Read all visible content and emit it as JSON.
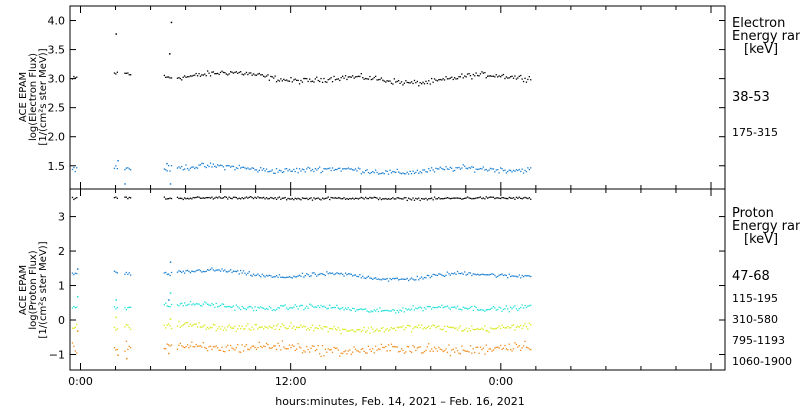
{
  "xlabel": "hours:minutes, Feb. 14, 2021 – Feb. 16, 2021",
  "x_ticks": [
    {
      "hour": 0,
      "label": "0:00"
    },
    {
      "hour": 12,
      "label": "12:00"
    },
    {
      "hour": 24,
      "label": "0:00"
    }
  ],
  "chart_data": [
    {
      "type": "scatter",
      "instrument": "ACE EPAM",
      "ylabel_lines": [
        "ACE EPAM",
        "log(Electron Flux)",
        "[1/(cm²s ster MeV)]"
      ],
      "xlim_hours": [
        -0.6,
        36.8
      ],
      "ylim": [
        1.1,
        4.25
      ],
      "y_ticks": [
        1.5,
        2.0,
        2.5,
        3.0,
        3.5,
        4.0
      ],
      "y_tick_labels": [
        "1.5",
        "2.0",
        "2.5",
        "3.0",
        "3.5",
        "4.0"
      ],
      "legend": {
        "title_lines": [
          "Electron",
          "Energy ran",
          "[keV]"
        ]
      },
      "series": [
        {
          "name": "38-53",
          "color": "#000000",
          "base": 3.03,
          "amp": 0.05,
          "noise": 0.04,
          "spikes": [
            [
              2.0,
              3.78
            ],
            [
              5.15,
              3.98
            ],
            [
              5.05,
              3.44
            ]
          ]
        },
        {
          "name": "175-315",
          "color": "#1a7fd1",
          "base": 1.45,
          "amp": 0.03,
          "noise": 0.04,
          "spikes": [
            [
              2.1,
              1.6
            ],
            [
              2.5,
              1.2
            ],
            [
              4.9,
              1.55
            ],
            [
              5.1,
              1.2
            ]
          ]
        }
      ]
    },
    {
      "type": "scatter",
      "instrument": "ACE EPAM",
      "ylabel_lines": [
        "ACE EPAM",
        "log(Proton Flux)",
        "[1/(cm²s ster MeV)]"
      ],
      "xlim_hours": [
        -0.6,
        36.8
      ],
      "ylim": [
        -1.45,
        3.8
      ],
      "y_ticks": [
        -1,
        0,
        1,
        2,
        3
      ],
      "y_tick_labels": [
        "−1",
        "0",
        "1",
        "2",
        "3"
      ],
      "legend": {
        "title_lines": [
          "Proton",
          "Energy ran",
          "[keV]"
        ]
      },
      "series": [
        {
          "name": "47-68",
          "color": "#000000",
          "base": 3.55,
          "amp": 0.01,
          "noise": 0.03,
          "spikes": []
        },
        {
          "name": "115-195",
          "color": "#1a7fd1",
          "base": 1.33,
          "amp": 0.07,
          "noise": 0.05,
          "spikes": [
            [
              5.1,
              1.7
            ],
            [
              5.0,
              0.6
            ],
            [
              -0.2,
              1.5
            ]
          ]
        },
        {
          "name": "310-580",
          "color": "#1ee0d8",
          "base": 0.38,
          "amp": 0.05,
          "noise": 0.06,
          "spikes": [
            [
              2.0,
              0.6
            ],
            [
              5.1,
              0.8
            ],
            [
              -0.2,
              0.7
            ]
          ]
        },
        {
          "name": "795-1193",
          "color": "#d8e81a",
          "base": -0.2,
          "amp": 0.04,
          "noise": 0.08,
          "spikes": [
            [
              2.0,
              0.1
            ],
            [
              5.1,
              0.05
            ]
          ]
        },
        {
          "name": "1060-1900",
          "color": "#f08a1a",
          "base": -0.8,
          "amp": 0.05,
          "noise": 0.12,
          "spikes": [
            [
              2.1,
              -1.0
            ],
            [
              2.6,
              -1.1
            ],
            [
              5.0,
              -0.95
            ],
            [
              -0.2,
              -0.3
            ]
          ]
        }
      ]
    }
  ]
}
